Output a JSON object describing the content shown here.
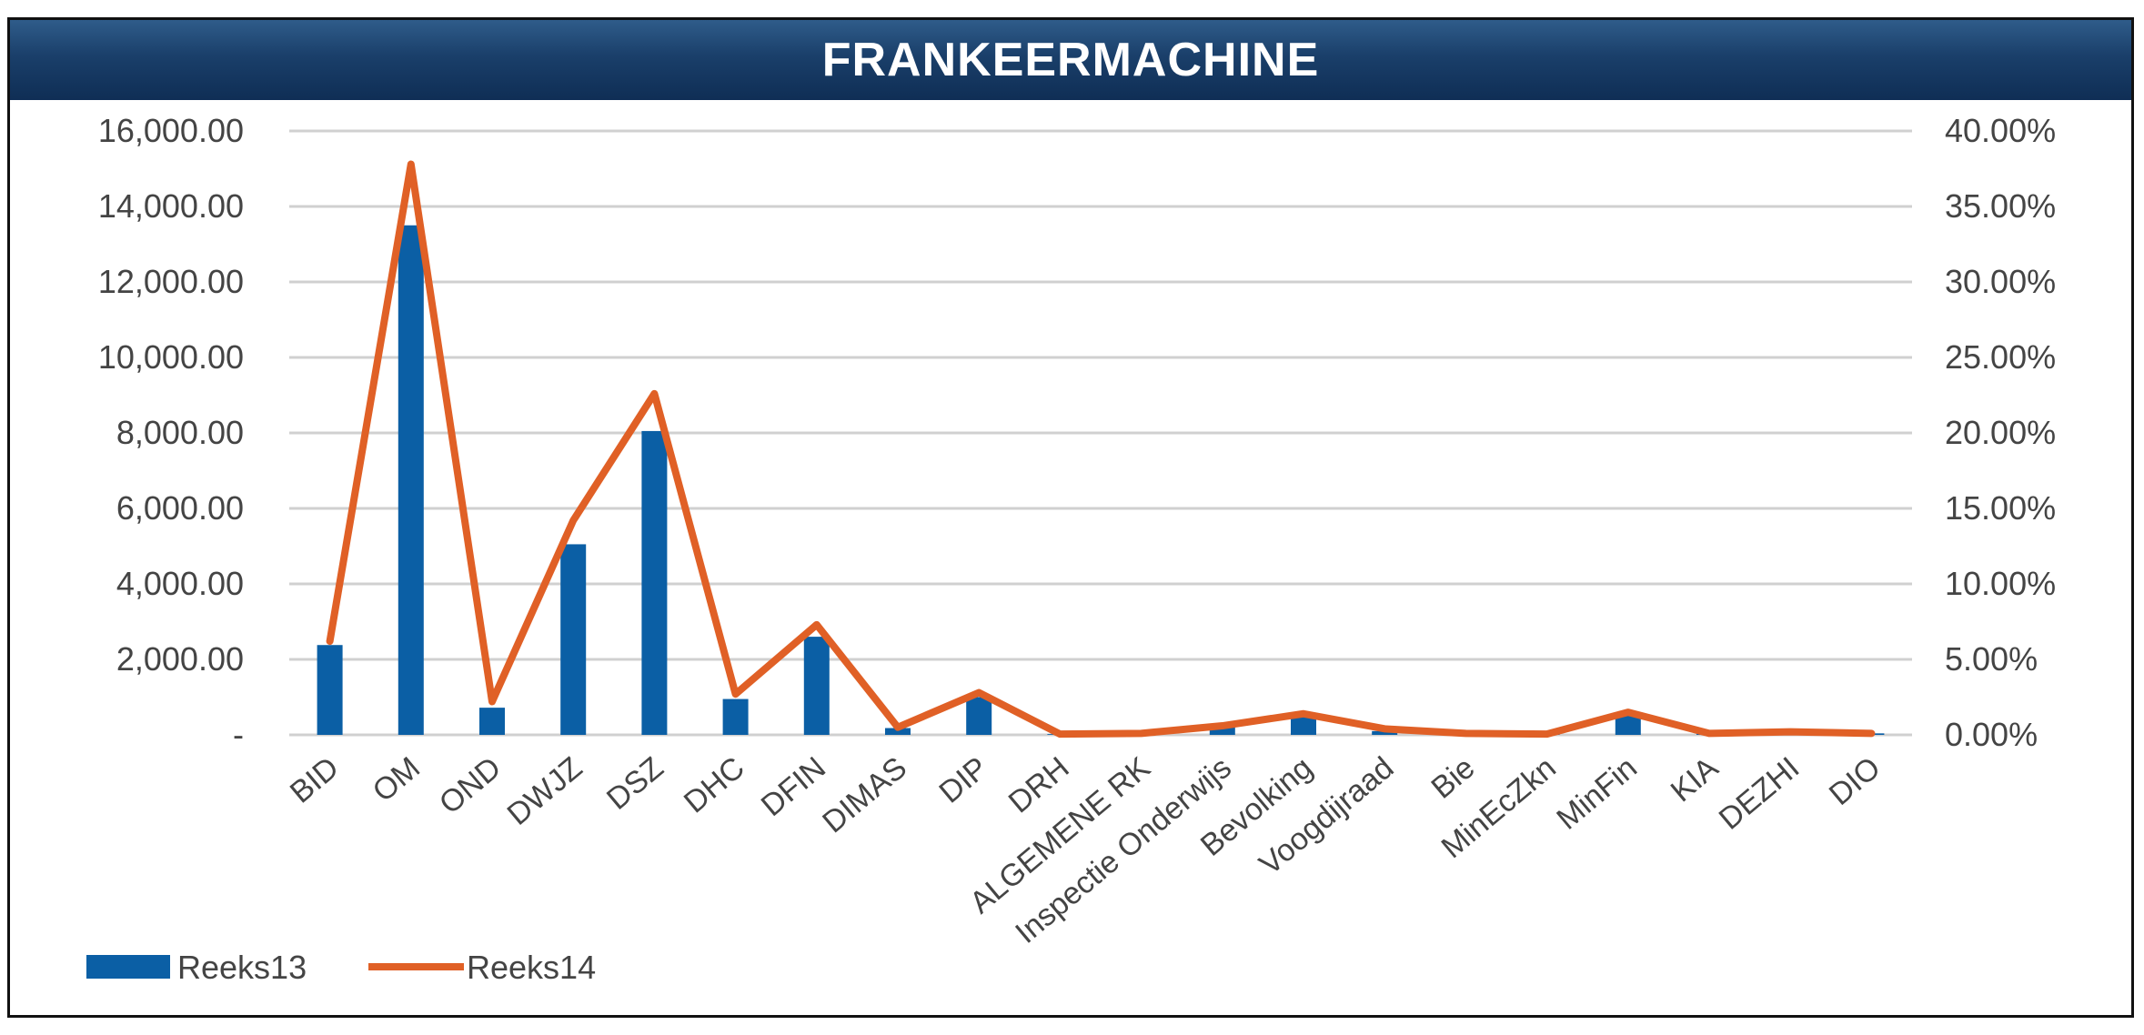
{
  "title": "FRANKEERMACHINE",
  "colors": {
    "bar": "#0b5fa5",
    "line": "#e06026",
    "grid": "#d0d0d0",
    "title_bg": "#1a3f6a",
    "text": "#444444"
  },
  "chart_data": {
    "type": "bar",
    "title": "FRANKEERMACHINE",
    "categories": [
      "BID",
      "OM",
      "OND",
      "DWJZ",
      "DSZ",
      "DHC",
      "DFIN",
      "DIMAS",
      "DIP",
      "DRH",
      "ALGEMENE RK",
      "Inspectie Onderwijs",
      "Bevolking",
      "Voogdijraad",
      "Bie",
      "MinEcZkn",
      "MinFin",
      "KIA",
      "DEZHI",
      "DIO"
    ],
    "series": [
      {
        "name": "Reeks13",
        "type": "bar",
        "axis": "left",
        "values": [
          2380,
          13500,
          720,
          5050,
          8050,
          950,
          2600,
          180,
          1000,
          20,
          30,
          200,
          480,
          100,
          30,
          20,
          550,
          30,
          50,
          40
        ]
      },
      {
        "name": "Reeks14",
        "type": "line",
        "axis": "right",
        "values": [
          0.062,
          0.378,
          0.022,
          0.142,
          0.226,
          0.027,
          0.073,
          0.005,
          0.028,
          0.0005,
          0.001,
          0.006,
          0.014,
          0.004,
          0.001,
          0.0005,
          0.015,
          0.001,
          0.002,
          0.001
        ]
      }
    ],
    "y_left": {
      "ylim": [
        0,
        16000
      ],
      "ticks": [
        "-",
        "2,000.00",
        "4,000.00",
        "6,000.00",
        "8,000.00",
        "10,000.00",
        "12,000.00",
        "14,000.00",
        "16,000.00"
      ]
    },
    "y_right": {
      "ylim": [
        0,
        0.4
      ],
      "ticks": [
        "0.00%",
        "5.00%",
        "10.00%",
        "15.00%",
        "20.00%",
        "25.00%",
        "30.00%",
        "35.00%",
        "40.00%"
      ]
    },
    "xlabel": "",
    "ylabel": "",
    "grid": true,
    "legend": {
      "placement": "bottom-left",
      "entries": [
        "Reeks13",
        "Reeks14"
      ]
    }
  }
}
